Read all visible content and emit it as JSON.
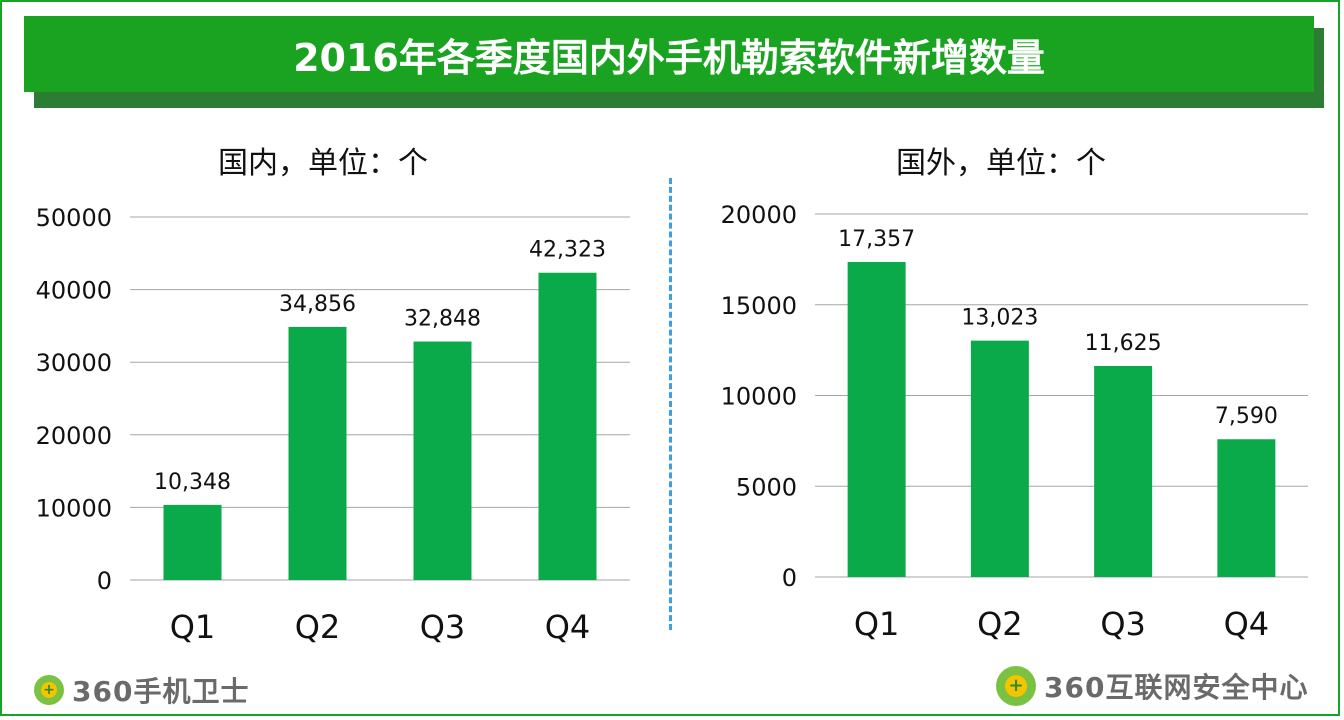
{
  "title": "2016年各季度国内外手机勒索软件新增数量",
  "colors": {
    "bar": "#0aaa4b",
    "banner": "#1aa320",
    "frame": "#16a52a"
  },
  "chart_data": [
    {
      "type": "bar",
      "title": "国内，单位：个",
      "categories": [
        "Q1",
        "Q2",
        "Q3",
        "Q4"
      ],
      "values": [
        10348,
        34856,
        32848,
        42323
      ],
      "value_labels": [
        "10,348",
        "34,856",
        "32,848",
        "42,323"
      ],
      "ylim": [
        0,
        50000
      ],
      "yticks": [
        "0",
        "10000",
        "20000",
        "30000",
        "40000",
        "50000"
      ],
      "grid": true
    },
    {
      "type": "bar",
      "title": "国外，单位：个",
      "categories": [
        "Q1",
        "Q2",
        "Q3",
        "Q4"
      ],
      "values": [
        17357,
        13023,
        11625,
        7590
      ],
      "value_labels": [
        "17,357",
        "13,023",
        "11,625",
        "7,590"
      ],
      "ylim": [
        0,
        20000
      ],
      "yticks": [
        "0",
        "5000",
        "10000",
        "15000",
        "20000"
      ],
      "grid": true
    }
  ],
  "logos": {
    "left": "360手机卫士",
    "right": "360互联网安全中心"
  }
}
